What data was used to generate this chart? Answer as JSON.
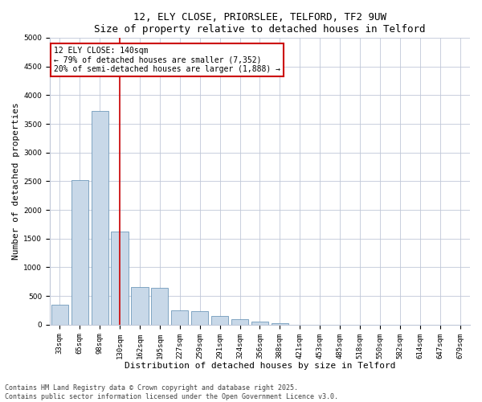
{
  "title": "12, ELY CLOSE, PRIORSLEE, TELFORD, TF2 9UW",
  "subtitle": "Size of property relative to detached houses in Telford",
  "xlabel": "Distribution of detached houses by size in Telford",
  "ylabel": "Number of detached properties",
  "categories": [
    "33sqm",
    "65sqm",
    "98sqm",
    "130sqm",
    "162sqm",
    "195sqm",
    "227sqm",
    "259sqm",
    "291sqm",
    "324sqm",
    "356sqm",
    "388sqm",
    "421sqm",
    "453sqm",
    "485sqm",
    "518sqm",
    "550sqm",
    "582sqm",
    "614sqm",
    "647sqm",
    "679sqm"
  ],
  "values": [
    350,
    2520,
    3730,
    1620,
    650,
    640,
    250,
    240,
    150,
    95,
    50,
    30,
    5,
    5,
    5,
    2,
    2,
    2,
    0,
    0,
    0
  ],
  "bar_color": "#c8d8e8",
  "bar_edge_color": "#5a8ab0",
  "highlight_index": 3,
  "highlight_line_color": "#cc0000",
  "annotation_text": "12 ELY CLOSE: 140sqm\n← 79% of detached houses are smaller (7,352)\n20% of semi-detached houses are larger (1,888) →",
  "annotation_box_color": "#ffffff",
  "annotation_box_edge_color": "#cc0000",
  "ylim": [
    0,
    5000
  ],
  "yticks": [
    0,
    500,
    1000,
    1500,
    2000,
    2500,
    3000,
    3500,
    4000,
    4500,
    5000
  ],
  "bg_color": "#ffffff",
  "grid_color": "#c0c8d8",
  "footer_text": "Contains HM Land Registry data © Crown copyright and database right 2025.\nContains public sector information licensed under the Open Government Licence v3.0.",
  "title_fontsize": 9,
  "subtitle_fontsize": 8.5,
  "xlabel_fontsize": 8,
  "ylabel_fontsize": 8,
  "tick_fontsize": 6.5,
  "annotation_fontsize": 7,
  "footer_fontsize": 6
}
